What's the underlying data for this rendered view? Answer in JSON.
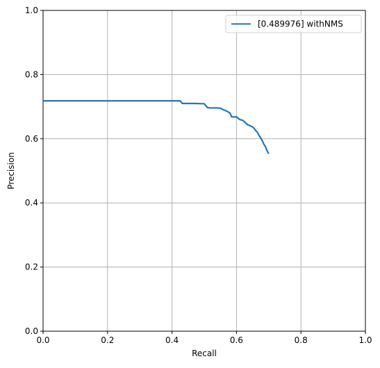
{
  "chart_data": {
    "type": "line",
    "title": "",
    "xlabel": "Recall",
    "ylabel": "Precision",
    "xlim": [
      0,
      1
    ],
    "ylim": [
      0,
      1
    ],
    "grid": true,
    "legend_placement": "top-right",
    "x_ticks": [
      "0.0",
      "0.2",
      "0.4",
      "0.6",
      "0.8",
      "1.0"
    ],
    "y_ticks": [
      "0.0",
      "0.2",
      "0.4",
      "0.6",
      "0.8",
      "1.0"
    ],
    "series": [
      {
        "name": "[0.489976] withNMS",
        "color": "#1f77b4",
        "x": [
          0.0,
          0.1,
          0.2,
          0.3,
          0.4,
          0.425,
          0.432,
          0.44,
          0.47,
          0.5,
          0.505,
          0.51,
          0.52,
          0.54,
          0.55,
          0.56,
          0.57,
          0.58,
          0.585,
          0.59,
          0.6,
          0.605,
          0.61,
          0.62,
          0.63,
          0.635,
          0.64,
          0.645,
          0.65,
          0.655,
          0.66,
          0.665,
          0.67,
          0.675,
          0.68,
          0.685,
          0.69,
          0.695,
          0.7
        ],
        "y": [
          0.718,
          0.718,
          0.718,
          0.718,
          0.718,
          0.718,
          0.71,
          0.71,
          0.71,
          0.709,
          0.703,
          0.697,
          0.696,
          0.696,
          0.695,
          0.69,
          0.686,
          0.68,
          0.668,
          0.668,
          0.668,
          0.664,
          0.66,
          0.657,
          0.648,
          0.643,
          0.642,
          0.639,
          0.637,
          0.632,
          0.625,
          0.62,
          0.61,
          0.603,
          0.594,
          0.583,
          0.575,
          0.562,
          0.553
        ]
      }
    ]
  }
}
